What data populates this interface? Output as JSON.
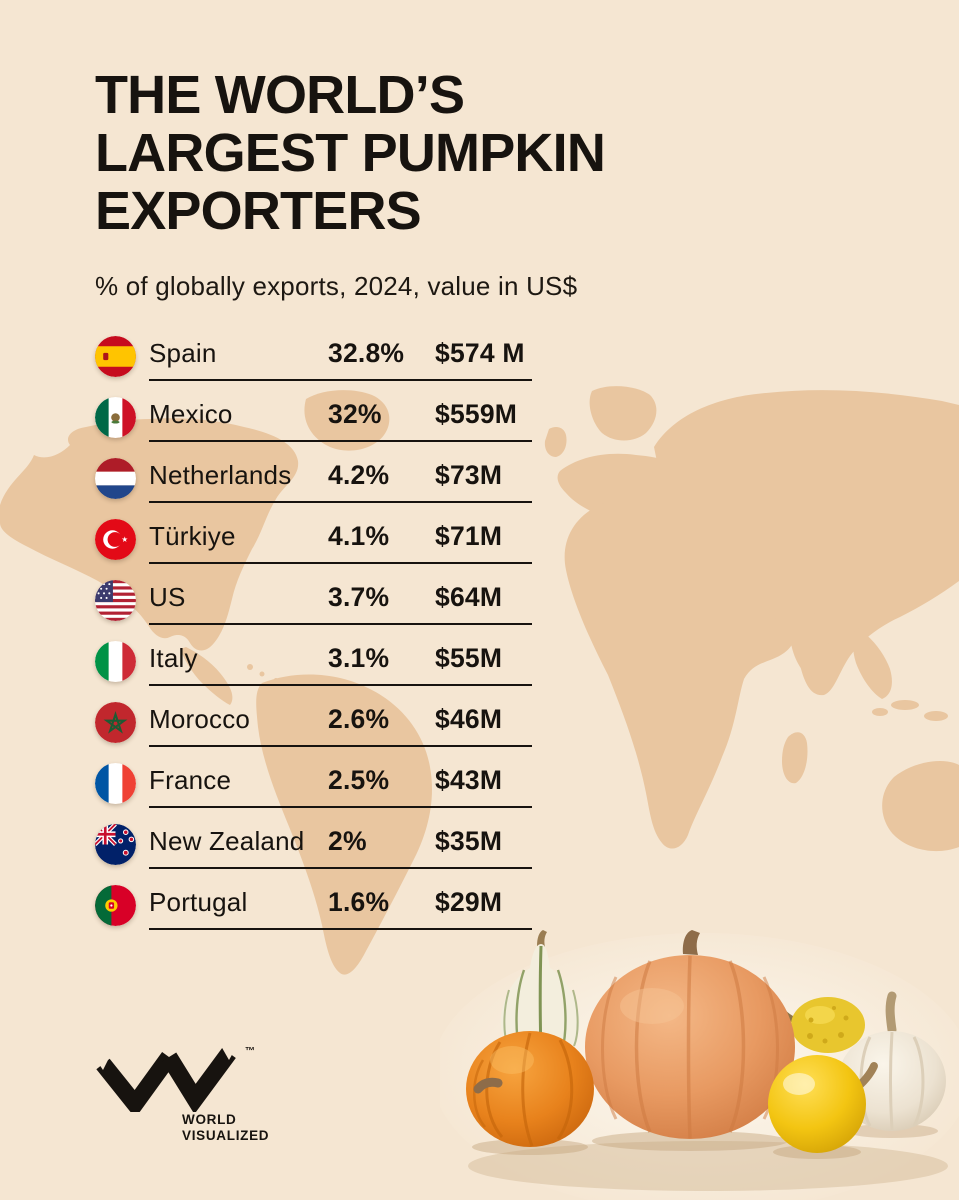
{
  "header": {
    "title_lines": [
      "THE WORLD’S",
      "LARGEST PUMPKIN",
      "EXPORTERS"
    ],
    "subtitle": "% of globally exports, 2024, value in US$"
  },
  "chart_data": {
    "type": "table",
    "title": "THE WORLD’S LARGEST PUMPKIN EXPORTERS",
    "subtitle": "% of globally exports, 2024, value in US$",
    "columns": [
      "country",
      "share_of_global_exports_percent",
      "export_value_usd"
    ],
    "rows": [
      {
        "country": "Spain",
        "flag_icon": "flag-spain-icon",
        "percent_label": "32.8%",
        "percent": 32.8,
        "value_label": "$574 M",
        "value_musd": 574
      },
      {
        "country": "Mexico",
        "flag_icon": "flag-mexico-icon",
        "percent_label": "32%",
        "percent": 32,
        "value_label": "$559M",
        "value_musd": 559
      },
      {
        "country": "Netherlands",
        "flag_icon": "flag-netherlands-icon",
        "percent_label": "4.2%",
        "percent": 4.2,
        "value_label": "$73M",
        "value_musd": 73
      },
      {
        "country": "Türkiye",
        "flag_icon": "flag-turkiye-icon",
        "percent_label": "4.1%",
        "percent": 4.1,
        "value_label": "$71M",
        "value_musd": 71
      },
      {
        "country": "US",
        "flag_icon": "flag-us-icon",
        "percent_label": "3.7%",
        "percent": 3.7,
        "value_label": "$64M",
        "value_musd": 64
      },
      {
        "country": "Italy",
        "flag_icon": "flag-italy-icon",
        "percent_label": "3.1%",
        "percent": 3.1,
        "value_label": "$55M",
        "value_musd": 55
      },
      {
        "country": "Morocco",
        "flag_icon": "flag-morocco-icon",
        "percent_label": "2.6%",
        "percent": 2.6,
        "value_label": "$46M",
        "value_musd": 46
      },
      {
        "country": "France",
        "flag_icon": "flag-france-icon",
        "percent_label": "2.5%",
        "percent": 2.5,
        "value_label": "$43M",
        "value_musd": 43
      },
      {
        "country": "New Zealand",
        "flag_icon": "flag-new-zealand-icon",
        "percent_label": "2%",
        "percent": 2,
        "value_label": "$35M",
        "value_musd": 35
      },
      {
        "country": "Portugal",
        "flag_icon": "flag-portugal-icon",
        "percent_label": "1.6%",
        "percent": 1.6,
        "value_label": "$29M",
        "value_musd": 29
      }
    ],
    "legend_position": "none",
    "grid": false
  },
  "footer": {
    "logo_lines": [
      "WORLD",
      "VISUALIZED"
    ],
    "trademark": "™"
  },
  "colors": {
    "background": "#f5e6d2",
    "map": "#e9c6a0",
    "text": "#17130f",
    "rule": "#17130f"
  },
  "icons": {
    "map": "world-map-silhouette",
    "decor": [
      "striped-gourd",
      "small-orange-pumpkin",
      "large-orange-pumpkin",
      "yellow-bumpy-gourd",
      "yellow-round-gourd",
      "white-pumpkin"
    ]
  }
}
